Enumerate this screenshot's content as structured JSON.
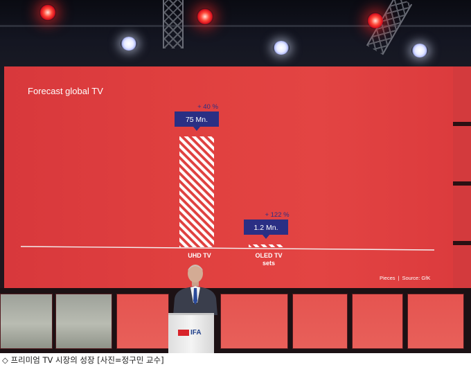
{
  "slide": {
    "title": "Forecast global TV",
    "source_label": "Pieces",
    "source_separator": "|",
    "source_text": "Source: GfK"
  },
  "chart_data": {
    "type": "bar",
    "title": "Forecast global TV",
    "categories": [
      "UHD TV",
      "OLED TV sets"
    ],
    "category_lines": [
      [
        "UHD TV"
      ],
      [
        "OLED TV",
        "sets"
      ]
    ],
    "values": [
      75,
      1.2
    ],
    "value_labels": [
      "75 Mn.",
      "1.2 Mn."
    ],
    "growth_labels": [
      "+ 40 %",
      "+ 122 %"
    ],
    "unit": "Pieces",
    "source": "Source: GfK",
    "colors": {
      "bar_stripe": "#ffffff",
      "label_box": "#2a2f84",
      "growth_text": "#2a2f84",
      "background": "#e0403f"
    }
  },
  "podium": {
    "logo_text": "IFA"
  },
  "caption": {
    "marker": "◇",
    "text": "프리미엄 TV 시장의 성장 [사진=정구민 교수]"
  }
}
